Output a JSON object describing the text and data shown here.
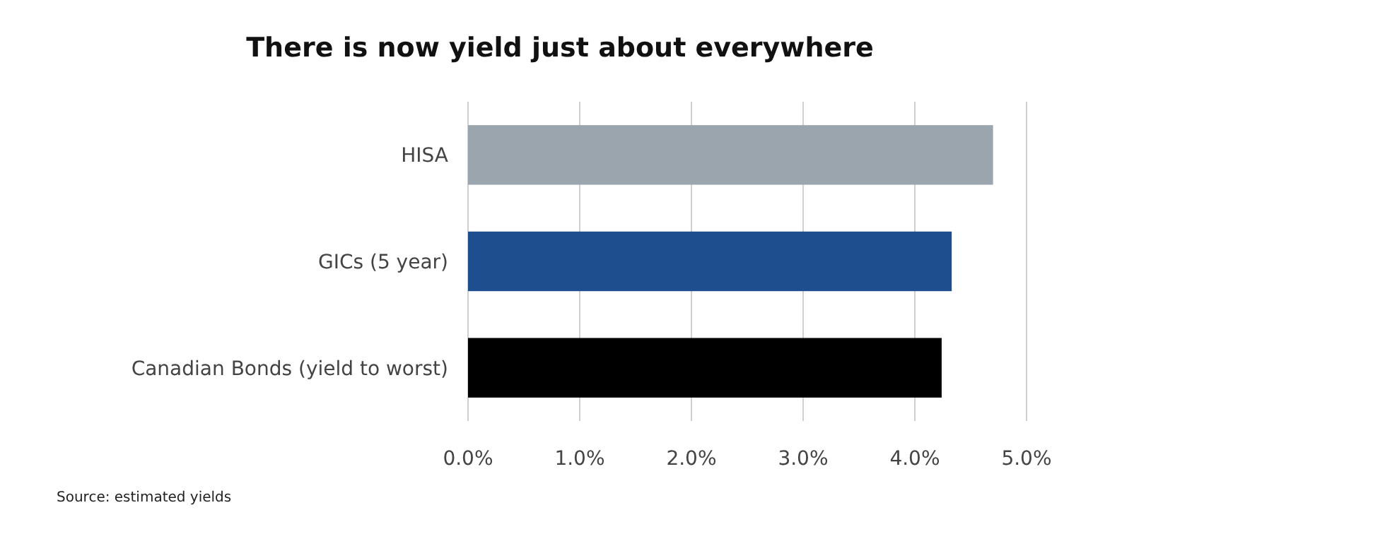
{
  "chart_data": {
    "type": "bar",
    "orientation": "horizontal",
    "title": "There is now yield just about everywhere",
    "categories": [
      "HISA",
      "GICs (5 year)",
      "Canadian Bonds (yield to worst)"
    ],
    "values": [
      4.7,
      4.33,
      4.24
    ],
    "colors": [
      "#9aa5ae",
      "#1f4e8f",
      "#000000"
    ],
    "xlim": [
      0,
      5
    ],
    "xticks": [
      {
        "value": 0,
        "label": "0.0%"
      },
      {
        "value": 1,
        "label": "1.0%"
      },
      {
        "value": 2,
        "label": "2.0%"
      },
      {
        "value": 3,
        "label": "3.0%"
      },
      {
        "value": 4,
        "label": "4.0%"
      },
      {
        "value": 5,
        "label": "5.0%"
      }
    ],
    "grid": "x",
    "annotations": [
      "Source: estimated yields"
    ]
  }
}
